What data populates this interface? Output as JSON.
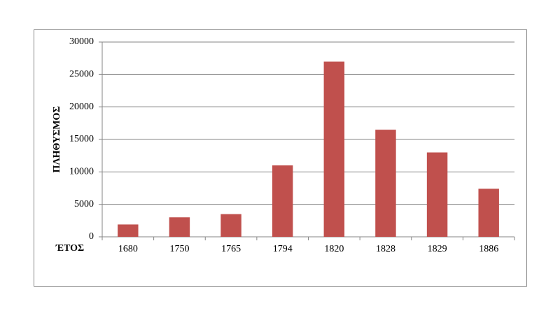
{
  "chart_data": {
    "type": "bar",
    "x_label": "ΈΤΟΣ",
    "y_label": "ΠΛΗΘΥΣΜΟΣ",
    "categories": [
      "1680",
      "1750",
      "1765",
      "1794",
      "1820",
      "1828",
      "1829",
      "1886"
    ],
    "values": [
      1900,
      3000,
      3500,
      11000,
      27000,
      16500,
      13000,
      7400
    ],
    "color": "#c0504d",
    "ylim": [
      0,
      30000
    ],
    "yticks": [
      0,
      5000,
      10000,
      15000,
      20000,
      25000,
      30000
    ],
    "grid": true
  }
}
